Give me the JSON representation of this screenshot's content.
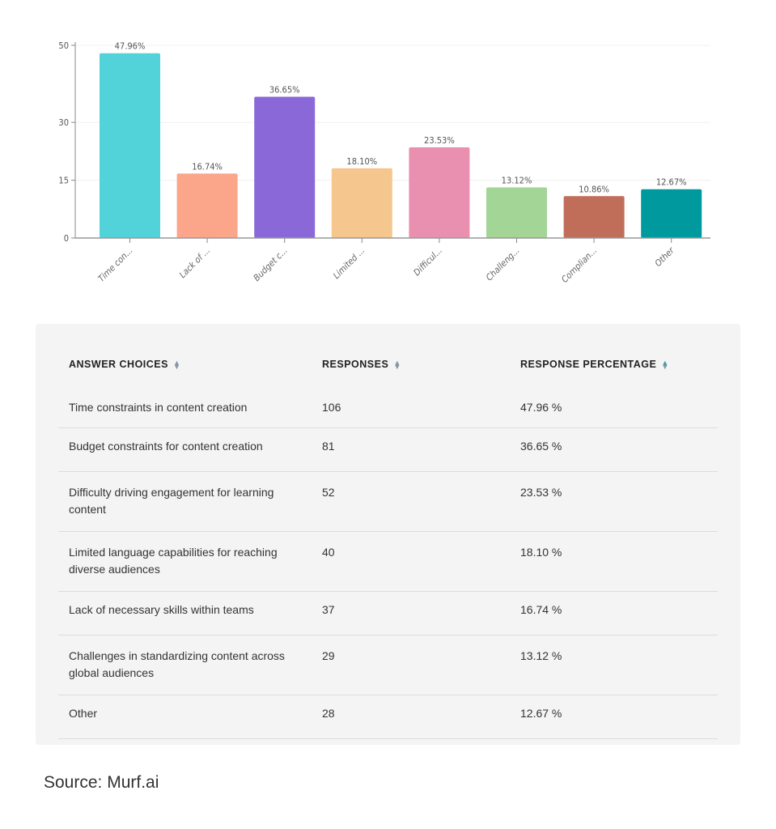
{
  "chart_data": {
    "type": "bar",
    "categories": [
      "Time con...",
      "Lack of ...",
      "Budget c...",
      "Limited ...",
      "Difficul...",
      "Challeng...",
      "Complian...",
      "Other"
    ],
    "values": [
      47.96,
      16.74,
      36.65,
      18.1,
      23.53,
      13.12,
      10.86,
      12.67
    ],
    "data_labels": [
      "47.96%",
      "16.74%",
      "36.65%",
      "18.10%",
      "23.53%",
      "13.12%",
      "10.86%",
      "12.67%"
    ],
    "colors": [
      "#52d3d9",
      "#fba58b",
      "#8b68d8",
      "#f5c68d",
      "#e98faf",
      "#a3d596",
      "#c06e5a",
      "#00999d"
    ],
    "yticks": [
      0,
      15,
      30,
      50
    ],
    "ylim": [
      0,
      50
    ],
    "grid": true
  },
  "table": {
    "headers": [
      "ANSWER CHOICES",
      "RESPONSES",
      "RESPONSE PERCENTAGE"
    ],
    "rows": [
      [
        "Time constraints in content creation",
        "106",
        "47.96 %"
      ],
      [
        "Budget constraints for content creation",
        "81",
        "36.65 %"
      ],
      [
        "Difficulty driving engagement for learning content",
        "52",
        "23.53 %"
      ],
      [
        "Limited language capabilities for reaching diverse audiences",
        "40",
        "18.10 %"
      ],
      [
        "Lack of necessary skills within teams",
        "37",
        "16.74 %"
      ],
      [
        "Challenges in standardizing content across global audiences",
        "29",
        "13.12 %"
      ],
      [
        "Other",
        "28",
        "12.67 %"
      ]
    ]
  },
  "source": "Source: Murf.ai"
}
